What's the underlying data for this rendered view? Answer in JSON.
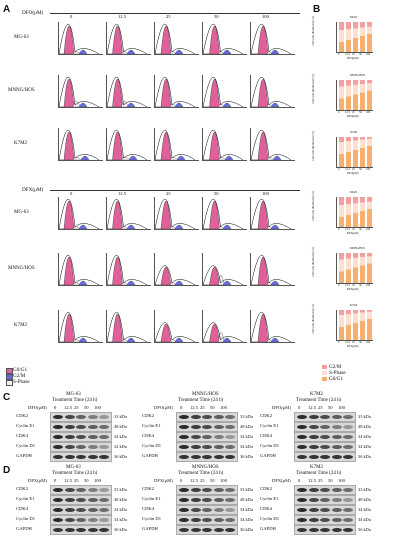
{
  "figure": {
    "panel_a": "A",
    "panel_b": "B",
    "panel_c": "C",
    "panel_d": "D",
    "dfo_header": "DFO(μM)",
    "dfx_header": "DFX(μM)",
    "doses": [
      "0",
      "12.5",
      "25",
      "50",
      "100"
    ],
    "cell_lines": [
      "MG-63",
      "MNNG/HOS",
      "K7M2"
    ],
    "legend": [
      "G0/G1",
      "G2/M",
      "S-Phase"
    ],
    "legend_b": [
      "G2/M",
      "S-Phase",
      "G0/G1"
    ],
    "bar_titles_top": [
      "MG63",
      "MNNG/HOS",
      "K7M2"
    ],
    "bar_titles_bottom": [
      "MG63",
      "MNNG/HOS",
      "K7M2"
    ],
    "bar_ylabel": "Cell cycle distribution (%)",
    "bar_xlabel_dfo": "DFO(μM)",
    "bar_xlabel_dfx": "DFX(μM)",
    "treatment": "Treatment Time (24 h)",
    "proteins": [
      "CDK2",
      "Cyclin E1",
      "CDK4",
      "Cyclin D1",
      "GAPDH"
    ],
    "kda": [
      "33 kDa",
      "48 kDa",
      "34 kDa",
      "34 kDa",
      "36 kDa"
    ],
    "colors": {
      "g0g1": "#e0609a",
      "g2m": "#6a6ae0",
      "s": "#f0f0f0",
      "bar_g2m": "#f4a0a0",
      "bar_s": "#fde0d0",
      "bar_g0g1": "#f5b070"
    }
  }
}
